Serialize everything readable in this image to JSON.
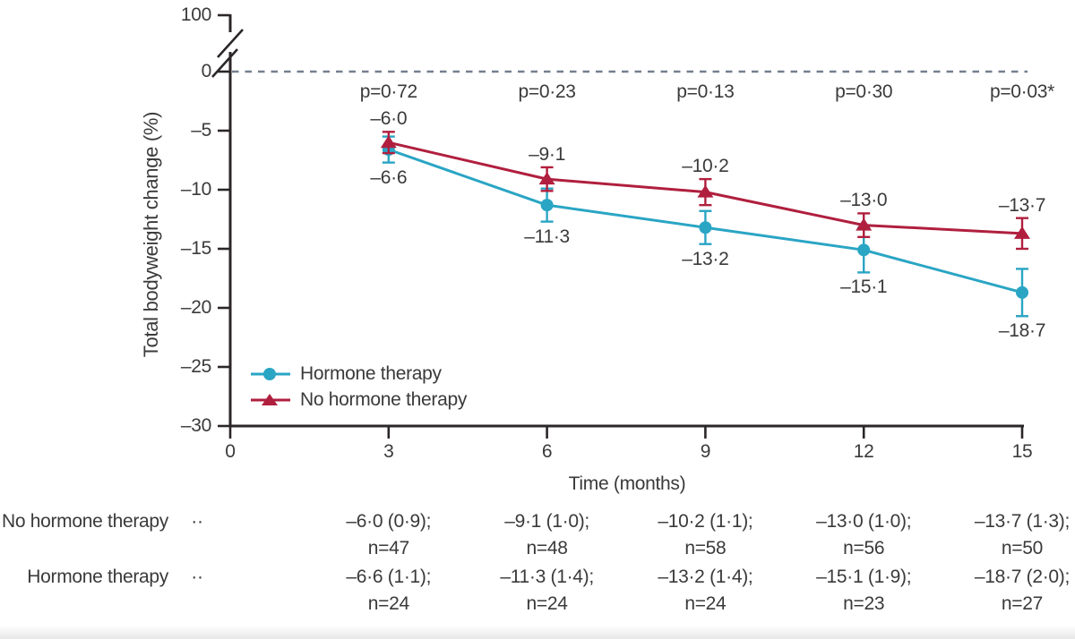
{
  "chart_data": {
    "type": "line",
    "title": "",
    "xlabel": "Time (months)",
    "ylabel": "Total bodyweight change (%)",
    "x": [
      3,
      6,
      9,
      12,
      15
    ],
    "x_ticks": [
      0,
      3,
      6,
      9,
      12,
      15
    ],
    "x_tick_labels": [
      "0",
      "3",
      "6",
      "9",
      "12",
      "15"
    ],
    "y_ticks": [
      0,
      -5,
      -10,
      -15,
      -20,
      -25,
      -30
    ],
    "y_tick_labels": [
      "0",
      "–5",
      "–10",
      "–15",
      "–20",
      "–25",
      "–30"
    ],
    "y_axis_break_top_label": "100",
    "ylim_shown": [
      -30,
      0
    ],
    "grid": false,
    "zero_line": {
      "style": "dashed",
      "color": "#75808f"
    },
    "p_values": [
      "p=0·72",
      "p=0·23",
      "p=0·13",
      "p=0·30",
      "p=0·03*"
    ],
    "series": [
      {
        "name": "Hormone therapy",
        "marker": "circle",
        "color": "#2aa5c4",
        "values": [
          -6.6,
          -11.3,
          -13.2,
          -15.1,
          -18.7
        ],
        "se": [
          1.1,
          1.4,
          1.4,
          1.9,
          2.0
        ],
        "n": [
          24,
          24,
          24,
          23,
          27
        ],
        "point_labels": [
          "–6·6",
          "–11·3",
          "–13·2",
          "–15·1",
          "–18·7"
        ],
        "label_side": "below"
      },
      {
        "name": "No hormone therapy",
        "marker": "triangle",
        "color": "#b01f3e",
        "values": [
          -6.0,
          -9.1,
          -10.2,
          -13.0,
          -13.7
        ],
        "se": [
          0.9,
          1.0,
          1.1,
          1.0,
          1.3
        ],
        "n": [
          47,
          48,
          58,
          56,
          50
        ],
        "point_labels": [
          "–6·0",
          "–9·1",
          "–10·2",
          "–13·0",
          "–13·7"
        ],
        "label_side": "above"
      }
    ],
    "legend": {
      "position": "inside-bottom-left",
      "entries": [
        "Hormone therapy",
        "No hormone therapy"
      ]
    }
  },
  "table": {
    "rows": [
      {
        "label": "No hormone therapy",
        "dots": "··",
        "cells": [
          {
            "value": "–6·0 (0·9);",
            "n": "n=47"
          },
          {
            "value": "–9·1 (1·0);",
            "n": "n=48"
          },
          {
            "value": "–10·2 (1·1);",
            "n": "n=58"
          },
          {
            "value": "–13·0 (1·0);",
            "n": "n=56"
          },
          {
            "value": "–13·7 (1·3);",
            "n": "n=50"
          }
        ]
      },
      {
        "label": "Hormone therapy",
        "dots": "··",
        "cells": [
          {
            "value": "–6·6 (1·1);",
            "n": "n=24"
          },
          {
            "value": "–11·3 (1·4);",
            "n": "n=24"
          },
          {
            "value": "–13·2 (1·4);",
            "n": "n=24"
          },
          {
            "value": "–15·1 (1·9);",
            "n": "n=23"
          },
          {
            "value": "–18·7 (2·0);",
            "n": "n=27"
          }
        ]
      }
    ]
  },
  "colors": {
    "axis": "#2b2627",
    "text": "#3a3a3a",
    "zero_line": "#75808f"
  }
}
